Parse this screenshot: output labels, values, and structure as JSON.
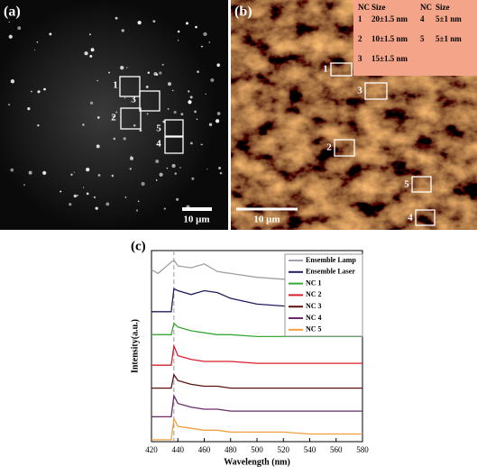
{
  "panels": {
    "a": {
      "label": "(a)",
      "scale_bar": "10 μm",
      "boxes": [
        "1",
        "3",
        "2",
        "5",
        "4"
      ]
    },
    "b": {
      "label": "(b)",
      "scale_bar": "10 μm",
      "boxes": [
        "1",
        "3",
        "2",
        "5",
        "4"
      ],
      "table": {
        "header": [
          "NC",
          "Size",
          "NC",
          "Size"
        ],
        "rows": [
          [
            "1",
            "20±1.5 nm",
            "4",
            "5±1 nm"
          ],
          [
            "2",
            "10±1.5 nm",
            "5",
            "5±1 nm"
          ],
          [
            "3",
            "15±1.5 nm"
          ]
        ]
      }
    }
  },
  "chart_data": {
    "type": "line",
    "panel_label": "(c)",
    "x_label": "Wavelength (nm)",
    "y_label": "Intensity(a.u.)",
    "x": [
      420,
      425,
      430,
      435,
      437,
      440,
      450,
      460,
      470,
      480,
      500,
      520,
      540,
      560,
      580
    ],
    "xlim": [
      420,
      580
    ],
    "xticks": [
      420,
      440,
      460,
      480,
      500,
      520,
      540,
      560,
      580
    ],
    "ylim": [
      0,
      100
    ],
    "marker_x": 437,
    "series": [
      {
        "name": "Ensemble Lamp",
        "color": "#a0a0a8",
        "values": [
          90,
          88,
          91,
          94,
          95,
          92,
          91,
          93,
          89,
          88,
          86,
          85,
          84,
          82,
          80
        ]
      },
      {
        "name": "Ensemble Laser",
        "color": "#1f1f5e",
        "values": [
          68,
          68,
          68,
          68,
          80,
          79,
          77,
          79,
          78,
          75,
          72,
          71,
          70,
          69,
          69
        ]
      },
      {
        "name": "NC 1",
        "color": "#3aa83a",
        "values": [
          56,
          56,
          56,
          56,
          62,
          60,
          58,
          57,
          56,
          56,
          55,
          55,
          55,
          55,
          55
        ]
      },
      {
        "name": "NC 2",
        "color": "#d81e2a",
        "values": [
          40,
          40,
          40,
          40,
          50,
          45,
          43,
          42,
          42,
          42,
          41,
          41,
          41,
          41,
          41
        ]
      },
      {
        "name": "NC 3",
        "color": "#5a1010",
        "values": [
          28,
          28,
          28,
          28,
          35,
          32,
          30,
          29,
          29,
          28,
          28,
          28,
          28,
          28,
          28
        ]
      },
      {
        "name": "NC 4",
        "color": "#6a2a6a",
        "values": [
          13,
          13,
          13,
          13,
          24,
          20,
          18,
          17,
          17,
          16,
          16,
          16,
          16,
          16,
          16
        ]
      },
      {
        "name": "NC 5",
        "color": "#f0a040",
        "values": [
          1,
          1,
          1,
          1,
          12,
          8,
          7,
          6,
          6,
          5,
          5,
          5,
          4,
          4,
          4
        ]
      }
    ]
  }
}
